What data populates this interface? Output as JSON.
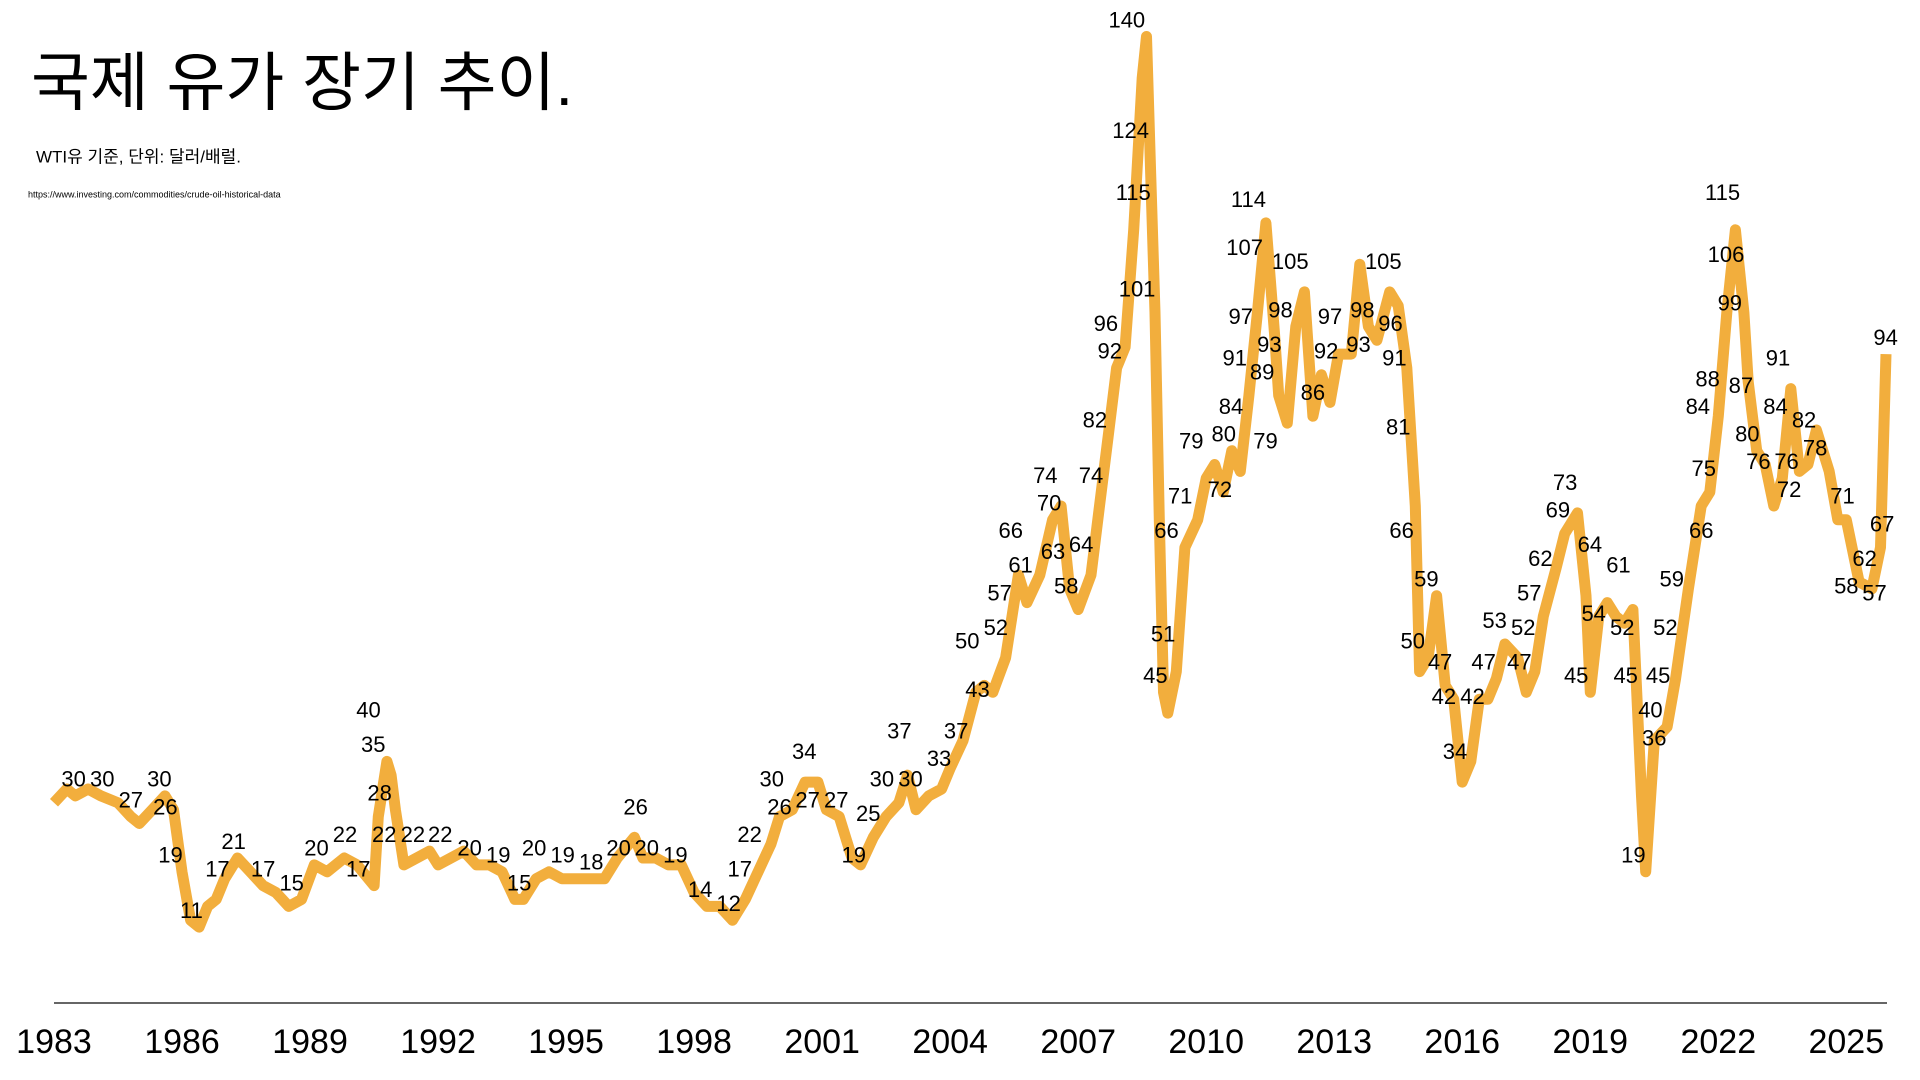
{
  "chart_data": {
    "type": "line",
    "title": "국제 유가 장기 추이.",
    "subtitle": "WTI유 기준,  단위: 달러/배럴.",
    "source": "https://www.investing.com/commodities/crude-oil-historical-data",
    "xlim": [
      1983,
      2025.93
    ],
    "xticks": [
      1983,
      1986,
      1989,
      1992,
      1995,
      1998,
      2001,
      2004,
      2007,
      2010,
      2013,
      2016,
      2019,
      2022,
      2025
    ],
    "ylim": [
      0,
      145
    ],
    "grid": false,
    "series": [
      {
        "name": "WTI",
        "color": "#f2ae3d",
        "x": [
          1983.0,
          1983.3,
          1983.5,
          1983.8,
          1984.1,
          1984.5,
          1984.8,
          1985.0,
          1985.3,
          1985.6,
          1985.8,
          1986.0,
          1986.2,
          1986.4,
          1986.6,
          1986.8,
          1987.0,
          1987.3,
          1987.6,
          1987.9,
          1988.2,
          1988.5,
          1988.8,
          1989.1,
          1989.4,
          1989.8,
          1990.1,
          1990.5,
          1990.6,
          1990.8,
          1990.9,
          1991.0,
          1991.2,
          1991.5,
          1991.8,
          1992.0,
          1992.3,
          1992.6,
          1992.9,
          1993.2,
          1993.5,
          1993.8,
          1994.0,
          1994.3,
          1994.6,
          1994.9,
          1995.2,
          1995.6,
          1995.9,
          1996.2,
          1996.6,
          1996.8,
          1997.1,
          1997.4,
          1997.7,
          1998.0,
          1998.3,
          1998.6,
          1998.9,
          1999.2,
          1999.5,
          1999.8,
          2000.0,
          2000.3,
          2000.6,
          2000.9,
          2001.1,
          2001.4,
          2001.7,
          2001.9,
          2002.2,
          2002.5,
          2002.8,
          2003.0,
          2003.2,
          2003.5,
          2003.8,
          2004.0,
          2004.3,
          2004.6,
          2004.8,
          2005.0,
          2005.3,
          2005.6,
          2005.8,
          2006.1,
          2006.4,
          2006.6,
          2006.8,
          2007.0,
          2007.3,
          2007.5,
          2007.7,
          2007.9,
          2008.1,
          2008.3,
          2008.5,
          2008.6,
          2008.7,
          2008.8,
          2008.9,
          2009.0,
          2009.1,
          2009.3,
          2009.5,
          2009.8,
          2010.0,
          2010.2,
          2010.4,
          2010.6,
          2010.8,
          2011.0,
          2011.2,
          2011.4,
          2011.6,
          2011.7,
          2011.9,
          2012.1,
          2012.3,
          2012.5,
          2012.7,
          2012.9,
          2013.1,
          2013.4,
          2013.6,
          2013.8,
          2014.0,
          2014.3,
          2014.5,
          2014.7,
          2014.9,
          2015.0,
          2015.2,
          2015.4,
          2015.6,
          2015.8,
          2016.0,
          2016.2,
          2016.4,
          2016.6,
          2016.8,
          2017.0,
          2017.3,
          2017.5,
          2017.7,
          2017.9,
          2018.2,
          2018.4,
          2018.7,
          2018.9,
          2019.0,
          2019.2,
          2019.4,
          2019.6,
          2019.8,
          2020.0,
          2020.2,
          2020.3,
          2020.5,
          2020.8,
          2021.0,
          2021.3,
          2021.6,
          2021.8,
          2022.0,
          2022.2,
          2022.4,
          2022.6,
          2022.7,
          2022.9,
          2023.1,
          2023.3,
          2023.5,
          2023.7,
          2023.9,
          2024.1,
          2024.3,
          2024.6,
          2024.8,
          2025.0,
          2025.3,
          2025.6,
          2025.8,
          2025.93
        ],
        "values": [
          29,
          31,
          30,
          31,
          30,
          29,
          27,
          26,
          28,
          30,
          28,
          19,
          12,
          11,
          14,
          15,
          18,
          21,
          19,
          17,
          16,
          14,
          15,
          20,
          19,
          21,
          20,
          17,
          27,
          35,
          33,
          28,
          20,
          21,
          22,
          20,
          21,
          22,
          20,
          20,
          19,
          15,
          15,
          18,
          19,
          18,
          18,
          18,
          18,
          21,
          24,
          21,
          21,
          20,
          20,
          16,
          14,
          14,
          12,
          15,
          19,
          23,
          27,
          28,
          32,
          32,
          28,
          27,
          21,
          20,
          24,
          27,
          29,
          33,
          28,
          30,
          31,
          34,
          38,
          45,
          46,
          45,
          50,
          62,
          58,
          62,
          70,
          72,
          60,
          57,
          62,
          72,
          82,
          92,
          95,
          112,
          134,
          140,
          120,
          100,
          70,
          45,
          42,
          48,
          66,
          70,
          76,
          78,
          74,
          80,
          77,
          88,
          100,
          113,
          97,
          88,
          84,
          98,
          103,
          85,
          91,
          87,
          94,
          94,
          107,
          98,
          96,
          103,
          101,
          92,
          72,
          48,
          50,
          59,
          46,
          44,
          32,
          35,
          44,
          44,
          47,
          52,
          50,
          45,
          48,
          56,
          63,
          68,
          71,
          59,
          45,
          56,
          58,
          56,
          55,
          57,
          30,
          19,
          38,
          40,
          47,
          60,
          72,
          74,
          85,
          100,
          112,
          100,
          90,
          80,
          78,
          72,
          76,
          89,
          77,
          78,
          83,
          77,
          70,
          70,
          61,
          60,
          66,
          94
        ]
      }
    ],
    "annotations": [
      {
        "x": 1983.46,
        "y": 30
      },
      {
        "x": 1984.13,
        "y": 30
      },
      {
        "x": 1984.8,
        "y": 27
      },
      {
        "x": 1985.47,
        "y": 30
      },
      {
        "x": 1985.61,
        "y": 26
      },
      {
        "x": 1985.73,
        "y": 19
      },
      {
        "x": 1986.22,
        "y": 11
      },
      {
        "x": 1986.83,
        "y": 17
      },
      {
        "x": 1987.21,
        "y": 21
      },
      {
        "x": 1987.9,
        "y": 17
      },
      {
        "x": 1988.57,
        "y": 15
      },
      {
        "x": 1989.15,
        "y": 20
      },
      {
        "x": 1989.82,
        "y": 22
      },
      {
        "x": 1990.13,
        "y": 17
      },
      {
        "x": 1990.37,
        "y": 40
      },
      {
        "x": 1990.48,
        "y": 35
      },
      {
        "x": 1990.63,
        "y": 28
      },
      {
        "x": 1990.74,
        "y": 22
      },
      {
        "x": 1991.41,
        "y": 22
      },
      {
        "x": 1992.05,
        "y": 22
      },
      {
        "x": 1992.74,
        "y": 20
      },
      {
        "x": 1993.41,
        "y": 19
      },
      {
        "x": 1993.9,
        "y": 15
      },
      {
        "x": 1994.25,
        "y": 20
      },
      {
        "x": 1994.92,
        "y": 19
      },
      {
        "x": 1995.59,
        "y": 18
      },
      {
        "x": 1996.23,
        "y": 20
      },
      {
        "x": 1996.63,
        "y": 26
      },
      {
        "x": 1996.89,
        "y": 20
      },
      {
        "x": 1997.56,
        "y": 19
      },
      {
        "x": 1998.14,
        "y": 14
      },
      {
        "x": 1998.81,
        "y": 12
      },
      {
        "x": 1999.07,
        "y": 17
      },
      {
        "x": 1999.3,
        "y": 22
      },
      {
        "x": 1999.82,
        "y": 30
      },
      {
        "x": 2000.0,
        "y": 26
      },
      {
        "x": 2000.58,
        "y": 34
      },
      {
        "x": 2000.66,
        "y": 27
      },
      {
        "x": 2001.33,
        "y": 27
      },
      {
        "x": 2001.74,
        "y": 19
      },
      {
        "x": 2002.08,
        "y": 25
      },
      {
        "x": 2002.4,
        "y": 30
      },
      {
        "x": 2002.81,
        "y": 37
      },
      {
        "x": 2003.07,
        "y": 30
      },
      {
        "x": 2003.74,
        "y": 33
      },
      {
        "x": 2004.14,
        "y": 37
      },
      {
        "x": 2004.4,
        "y": 50
      },
      {
        "x": 2004.64,
        "y": 43
      },
      {
        "x": 2005.07,
        "y": 52
      },
      {
        "x": 2005.16,
        "y": 57
      },
      {
        "x": 2005.42,
        "y": 66
      },
      {
        "x": 2005.65,
        "y": 61
      },
      {
        "x": 2006.23,
        "y": 74
      },
      {
        "x": 2006.32,
        "y": 70
      },
      {
        "x": 2006.41,
        "y": 63
      },
      {
        "x": 2006.72,
        "y": 58
      },
      {
        "x": 2007.07,
        "y": 64
      },
      {
        "x": 2007.3,
        "y": 74
      },
      {
        "x": 2007.39,
        "y": 82
      },
      {
        "x": 2007.65,
        "y": 96
      },
      {
        "x": 2007.74,
        "y": 92
      },
      {
        "x": 2008.14,
        "y": 140
      },
      {
        "x": 2008.23,
        "y": 124
      },
      {
        "x": 2008.29,
        "y": 115
      },
      {
        "x": 2008.38,
        "y": 101
      },
      {
        "x": 2008.81,
        "y": 45
      },
      {
        "x": 2008.99,
        "y": 51
      },
      {
        "x": 2009.07,
        "y": 66
      },
      {
        "x": 2009.39,
        "y": 71
      },
      {
        "x": 2009.65,
        "y": 79
      },
      {
        "x": 2010.32,
        "y": 72
      },
      {
        "x": 2010.41,
        "y": 80
      },
      {
        "x": 2010.58,
        "y": 84
      },
      {
        "x": 2010.67,
        "y": 91
      },
      {
        "x": 2010.81,
        "y": 97
      },
      {
        "x": 2010.9,
        "y": 107
      },
      {
        "x": 2010.99,
        "y": 114
      },
      {
        "x": 2011.31,
        "y": 89
      },
      {
        "x": 2011.39,
        "y": 79
      },
      {
        "x": 2011.48,
        "y": 93
      },
      {
        "x": 2011.74,
        "y": 98
      },
      {
        "x": 2011.97,
        "y": 105
      },
      {
        "x": 2012.5,
        "y": 86
      },
      {
        "x": 2012.81,
        "y": 92
      },
      {
        "x": 2012.9,
        "y": 97
      },
      {
        "x": 2013.57,
        "y": 93
      },
      {
        "x": 2013.66,
        "y": 98
      },
      {
        "x": 2014.15,
        "y": 105
      },
      {
        "x": 2014.32,
        "y": 96
      },
      {
        "x": 2014.41,
        "y": 91
      },
      {
        "x": 2014.5,
        "y": 81
      },
      {
        "x": 2014.58,
        "y": 66
      },
      {
        "x": 2014.84,
        "y": 50
      },
      {
        "x": 2015.16,
        "y": 59
      },
      {
        "x": 2015.48,
        "y": 47
      },
      {
        "x": 2015.57,
        "y": 42
      },
      {
        "x": 2015.83,
        "y": 34
      },
      {
        "x": 2016.24,
        "y": 42
      },
      {
        "x": 2016.5,
        "y": 47
      },
      {
        "x": 2016.76,
        "y": 53
      },
      {
        "x": 2017.34,
        "y": 47
      },
      {
        "x": 2017.43,
        "y": 52
      },
      {
        "x": 2017.57,
        "y": 57
      },
      {
        "x": 2017.83,
        "y": 62
      },
      {
        "x": 2018.24,
        "y": 69
      },
      {
        "x": 2018.41,
        "y": 73
      },
      {
        "x": 2018.67,
        "y": 45
      },
      {
        "x": 2018.99,
        "y": 64
      },
      {
        "x": 2019.08,
        "y": 54
      },
      {
        "x": 2019.66,
        "y": 61
      },
      {
        "x": 2019.75,
        "y": 52
      },
      {
        "x": 2019.83,
        "y": 45
      },
      {
        "x": 2020.01,
        "y": 19
      },
      {
        "x": 2020.41,
        "y": 40
      },
      {
        "x": 2020.5,
        "y": 36
      },
      {
        "x": 2020.59,
        "y": 45
      },
      {
        "x": 2020.76,
        "y": 52
      },
      {
        "x": 2020.91,
        "y": 59
      },
      {
        "x": 2021.52,
        "y": 84
      },
      {
        "x": 2021.6,
        "y": 66
      },
      {
        "x": 2021.66,
        "y": 75
      },
      {
        "x": 2021.75,
        "y": 88
      },
      {
        "x": 2022.1,
        "y": 115
      },
      {
        "x": 2022.18,
        "y": 106
      },
      {
        "x": 2022.27,
        "y": 99
      },
      {
        "x": 2022.53,
        "y": 87
      },
      {
        "x": 2022.68,
        "y": 80
      },
      {
        "x": 2022.94,
        "y": 76
      },
      {
        "x": 2023.34,
        "y": 84
      },
      {
        "x": 2023.4,
        "y": 91
      },
      {
        "x": 2023.6,
        "y": 76
      },
      {
        "x": 2023.66,
        "y": 72
      },
      {
        "x": 2024.01,
        "y": 82
      },
      {
        "x": 2024.27,
        "y": 78
      },
      {
        "x": 2024.91,
        "y": 71
      },
      {
        "x": 2025.0,
        "y": 58
      },
      {
        "x": 2025.43,
        "y": 62
      },
      {
        "x": 2025.66,
        "y": 57
      },
      {
        "x": 2025.84,
        "y": 67
      },
      {
        "x": 2025.92,
        "y": 94
      }
    ]
  }
}
